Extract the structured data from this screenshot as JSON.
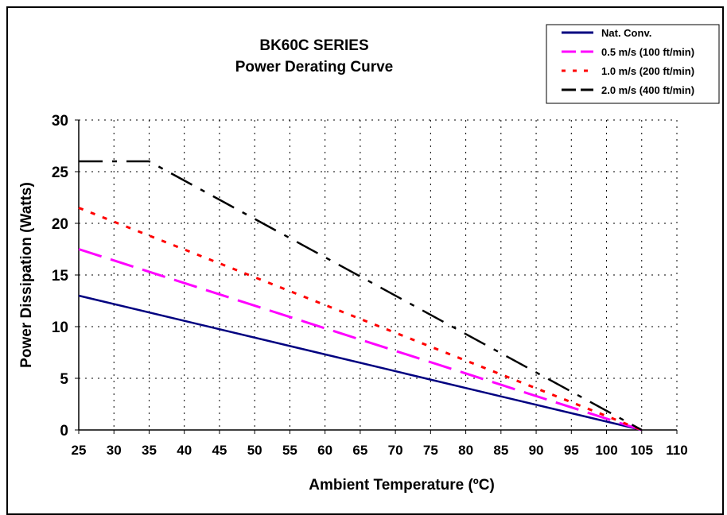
{
  "chart_data": {
    "type": "line",
    "title": "BK60C SERIES",
    "subtitle": "Power Derating Curve",
    "xlabel": "Ambient Temperature (ºC)",
    "ylabel": "Power Dissipation (Watts)",
    "xlim": [
      25,
      110
    ],
    "ylim": [
      0,
      30
    ],
    "xticks": [
      25,
      30,
      35,
      40,
      45,
      50,
      55,
      60,
      65,
      70,
      75,
      80,
      85,
      90,
      95,
      100,
      105,
      110
    ],
    "yticks": [
      0,
      5,
      10,
      15,
      20,
      25,
      30
    ],
    "grid": true,
    "legend_position": "top-right",
    "series": [
      {
        "name": "Nat. Conv.",
        "color": "#000080",
        "dash": "solid",
        "x": [
          25,
          105
        ],
        "y": [
          13,
          0
        ]
      },
      {
        "name": "0.5 m/s (100 ft/min)",
        "color": "#ff00ff",
        "dash": "long-dash",
        "x": [
          25,
          105
        ],
        "y": [
          17.5,
          0
        ]
      },
      {
        "name": "1.0 m/s (200 ft/min)",
        "color": "#ff0000",
        "dash": "dotted",
        "x": [
          25,
          105
        ],
        "y": [
          21.5,
          0
        ]
      },
      {
        "name": "2.0 m/s (400 ft/min)",
        "color": "#000000",
        "dash": "dash-dot",
        "x": [
          25,
          35,
          105
        ],
        "y": [
          26,
          26,
          0
        ]
      }
    ]
  }
}
